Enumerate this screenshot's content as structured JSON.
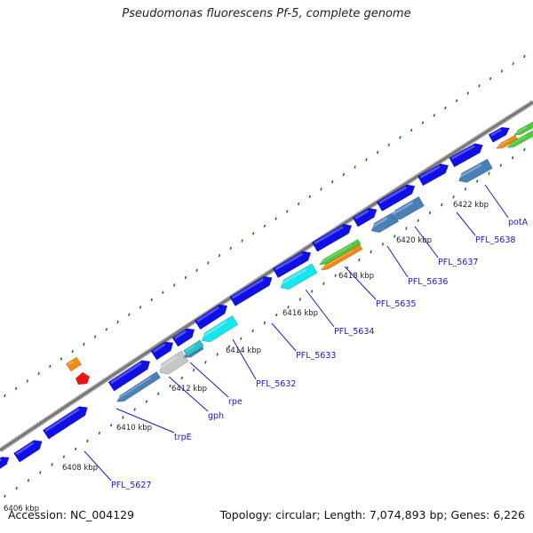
{
  "title": "Pseudomonas fluorescens Pf-5, complete genome",
  "footer": {
    "accession": "Accession: NC_004129",
    "summary": "Topology: circular; Length: 7,074,893 bp; Genes: 6,226"
  },
  "colors": {
    "backbone": "#777777",
    "cds": "#1010e6",
    "cds_dark": "#4a7fb8",
    "gray_feature": "#c6c6c6",
    "cyan_feature": "#18e6ee",
    "orange_feature": "#f08a10",
    "green_feature": "#4fca3c",
    "red_feature": "#e81515",
    "tick": "#1a7a1a",
    "label": "#1a1acc"
  },
  "scale_labels": [
    "6406 kbp",
    "6408 kbp",
    "6410 kbp",
    "6412 kbp",
    "6414 kbp",
    "6416 kbp",
    "6418 kbp",
    "6420 kbp",
    "6422 kbp"
  ],
  "gene_labels": [
    "PFL_5627",
    "trpE",
    "gph",
    "rpe",
    "PFL_5632",
    "PFL_5633",
    "PFL_5634",
    "PFL_5635",
    "PFL_5636",
    "PFL_5637",
    "PFL_5638",
    "potA"
  ]
}
